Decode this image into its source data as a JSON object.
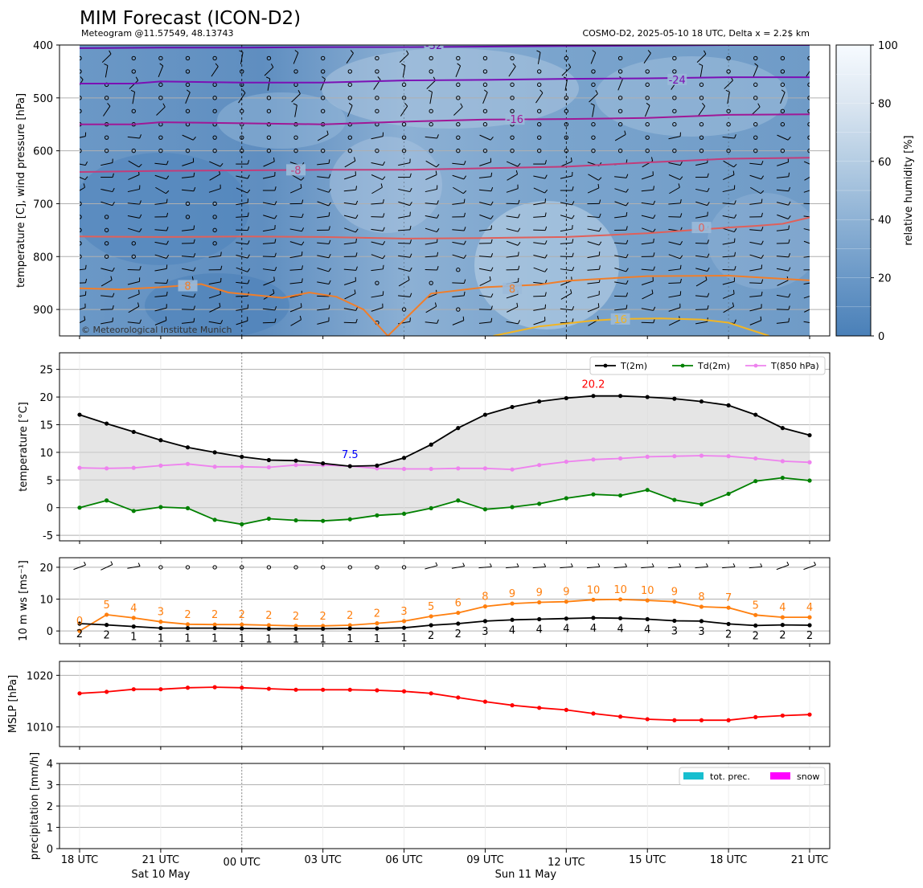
{
  "title": "MIM Forecast (ICON-D2)",
  "subtitle_left": "Meteogram @11.57549, 48.13743",
  "subtitle_right": "COSMO-D2, 2025-05-10 18 UTC, Delta x = 2.2$ km",
  "copyright": "© Meteorological Institute Munich",
  "time_axis": {
    "ticks": [
      "18 UTC",
      "21 UTC",
      "00 UTC",
      "03 UTC",
      "06 UTC",
      "09 UTC",
      "12 UTC",
      "15 UTC",
      "18 UTC",
      "21 UTC"
    ],
    "days": [
      "Sat 10 May",
      "Sun 11 May"
    ]
  },
  "chart_data": [
    {
      "id": "upper_air",
      "type": "heatmap",
      "ylabel": "temperature [C], wind pressure [hPa]",
      "y_ticks": [
        400,
        500,
        600,
        700,
        800,
        900
      ],
      "ylim": [
        950,
        400
      ],
      "xlim": [
        0,
        27
      ],
      "colorbar": {
        "label": "relative humidity [%]",
        "ticks": [
          0,
          20,
          40,
          60,
          80,
          100
        ]
      },
      "isotherms": [
        {
          "label": "-32",
          "color": "#6a0dad",
          "x": [
            0,
            3,
            6,
            9,
            12,
            15,
            18,
            21,
            24,
            27
          ],
          "p": [
            406,
            405,
            405,
            404,
            404,
            403,
            402,
            401,
            400,
            400
          ]
        },
        {
          "label": "-24",
          "color": "#7b10b5",
          "x": [
            0,
            2,
            3,
            6,
            9,
            12,
            15,
            18,
            21,
            24,
            27
          ],
          "p": [
            473,
            473,
            469,
            471,
            471,
            467,
            466,
            464,
            463,
            461,
            461
          ]
        },
        {
          "label": "-16",
          "color": "#a01896",
          "x": [
            0,
            2,
            3,
            6,
            9,
            12,
            15,
            18,
            21,
            24,
            27
          ],
          "p": [
            550,
            550,
            546,
            548,
            550,
            545,
            541,
            540,
            538,
            532,
            531
          ]
        },
        {
          "label": "-8",
          "color": "#c23c7a",
          "x": [
            0,
            3,
            6,
            9,
            12,
            15,
            18,
            21,
            24,
            27
          ],
          "p": [
            640,
            638,
            637,
            636,
            636,
            633,
            630,
            622,
            615,
            613
          ]
        },
        {
          "label": "0",
          "color": "#e0605a",
          "x": [
            0,
            3,
            6,
            9,
            12,
            15,
            18,
            21,
            24,
            25,
            26,
            27
          ],
          "p": [
            762,
            763,
            762,
            763,
            766,
            765,
            763,
            756,
            745,
            742,
            738,
            726
          ]
        },
        {
          "label": "8",
          "color": "#f07e2a",
          "x": [
            0,
            1.5,
            3,
            4.5,
            5.5,
            6.5,
            7.5,
            8.5,
            9.5,
            10.5,
            11.4,
            13,
            15,
            17,
            18,
            21,
            24,
            27
          ],
          "p": [
            860,
            862,
            858,
            852,
            868,
            873,
            878,
            868,
            876,
            900,
            950,
            870,
            858,
            853,
            846,
            837,
            836,
            845
          ]
        },
        {
          "label": "16",
          "color": "#f2b523",
          "x": [
            15.3,
            17,
            19,
            20,
            21.5,
            23,
            24,
            25.5
          ],
          "p": [
            950,
            932,
            921,
            918,
            917,
            919,
            925,
            950
          ]
        }
      ],
      "isotherm_labels": [
        {
          "text": "-32",
          "x": 13.1,
          "p": 400
        },
        {
          "text": "-24",
          "x": 22.1,
          "p": 465
        },
        {
          "text": "-16",
          "x": 16.1,
          "p": 540
        },
        {
          "text": "-8",
          "x": 8.0,
          "p": 636
        },
        {
          "text": "0",
          "x": 23.0,
          "p": 745
        },
        {
          "text": "8",
          "x": 4.0,
          "p": 855
        },
        {
          "text": "8",
          "x": 16.0,
          "p": 860
        },
        {
          "text": "16",
          "x": 20.0,
          "p": 918
        }
      ]
    },
    {
      "id": "temperature",
      "type": "line",
      "ylabel": "temperature [$^\\circ$C]",
      "ylim": [
        -6,
        28
      ],
      "y_ticks": [
        -5,
        0,
        5,
        10,
        15,
        20,
        25
      ],
      "x": [
        0,
        1,
        2,
        3,
        4,
        5,
        6,
        7,
        8,
        9,
        10,
        11,
        12,
        13,
        14,
        15,
        16,
        17,
        18,
        19,
        20,
        21,
        22,
        23,
        24,
        25,
        26,
        27
      ],
      "series": [
        {
          "name": "T(2m)",
          "color": "#000000",
          "values": [
            16.8,
            15.2,
            13.7,
            12.2,
            10.9,
            10.0,
            9.2,
            8.6,
            8.5,
            8.0,
            7.5,
            7.6,
            9.0,
            11.4,
            14.4,
            16.8,
            18.2,
            19.2,
            19.8,
            20.2,
            20.2,
            20.0,
            19.7,
            19.2,
            18.5,
            16.8,
            14.4,
            13.1
          ]
        },
        {
          "name": "Td(2m)",
          "color": "#008000",
          "values": [
            0.0,
            1.3,
            -0.6,
            0.1,
            -0.1,
            -2.2,
            -3.0,
            -2.0,
            -2.3,
            -2.4,
            -2.1,
            -1.4,
            -1.1,
            -0.1,
            1.3,
            -0.3,
            0.1,
            0.7,
            1.7,
            2.4,
            2.2,
            3.2,
            1.4,
            0.6,
            2.5,
            4.8,
            5.4,
            4.9
          ]
        },
        {
          "name": "T(850 hPa)",
          "color": "#ee82ee",
          "values": [
            7.2,
            7.1,
            7.2,
            7.6,
            7.9,
            7.4,
            7.4,
            7.3,
            7.7,
            7.7,
            7.5,
            7.1,
            7.0,
            7.0,
            7.1,
            7.1,
            6.9,
            7.7,
            8.3,
            8.7,
            8.9,
            9.2,
            9.3,
            9.4,
            9.3,
            8.9,
            8.4,
            8.2
          ]
        }
      ],
      "annotations": [
        {
          "text": "7.5",
          "x": 10,
          "y": 7.5,
          "color": "#0000ff"
        },
        {
          "text": "20.2",
          "x": 19,
          "y": 20.2,
          "color": "#ff0000"
        }
      ],
      "legend": "top-right"
    },
    {
      "id": "wind",
      "type": "line",
      "ylabel": "10 m ws [ms$^{-1}$]",
      "ylim": [
        -4,
        23
      ],
      "y_ticks": [
        0,
        10,
        20
      ],
      "x": [
        0,
        1,
        2,
        3,
        4,
        5,
        6,
        7,
        8,
        9,
        10,
        11,
        12,
        13,
        14,
        15,
        16,
        17,
        18,
        19,
        20,
        21,
        22,
        23,
        24,
        25,
        26,
        27
      ],
      "series": [
        {
          "color": "#ff7f0e",
          "values": [
            0.0,
            5.1,
            4.1,
            2.9,
            2.1,
            2.0,
            2.0,
            1.8,
            1.6,
            1.6,
            1.8,
            2.4,
            3.1,
            4.6,
            5.7,
            7.7,
            8.6,
            9.0,
            9.2,
            9.8,
            9.9,
            9.6,
            9.2,
            7.6,
            7.3,
            5.0,
            4.3,
            4.3
          ]
        },
        {
          "color": "#000000",
          "values": [
            2.3,
            1.9,
            1.4,
            0.9,
            0.9,
            0.9,
            0.8,
            0.7,
            0.7,
            0.7,
            0.8,
            0.8,
            1.0,
            1.8,
            2.3,
            3.1,
            3.5,
            3.7,
            3.9,
            4.1,
            4.0,
            3.7,
            3.2,
            3.1,
            2.2,
            1.7,
            1.9,
            1.8
          ]
        }
      ],
      "gust_labels": [
        "0",
        "5",
        "4",
        "3",
        "2",
        "2",
        "2",
        "2",
        "2",
        "2",
        "2",
        "2",
        "3",
        "5",
        "6",
        "8",
        "9",
        "9",
        "9",
        "10",
        "10",
        "10",
        "9",
        "8",
        "7",
        "5",
        "4",
        "4"
      ],
      "speed_labels": [
        "2",
        "2",
        "1",
        "1",
        "1",
        "1",
        "1",
        "1",
        "1",
        "1",
        "1",
        "1",
        "1",
        "2",
        "2",
        "3",
        "4",
        "4",
        "4",
        "4",
        "4",
        "4",
        "3",
        "3",
        "2",
        "2",
        "2",
        "2"
      ],
      "barb_angles": [
        -20,
        -25,
        -10,
        null,
        null,
        null,
        null,
        null,
        null,
        null,
        null,
        null,
        null,
        -15,
        -10,
        -5,
        -5,
        -5,
        -5,
        -5,
        -5,
        -5,
        -5,
        -5,
        -5,
        -5,
        -20,
        -20
      ]
    },
    {
      "id": "mslp",
      "type": "line",
      "ylabel": "MSLP [hPa]",
      "ylim": [
        1006.2,
        1022.7
      ],
      "y_ticks": [
        1010,
        1020
      ],
      "x": [
        0,
        1,
        2,
        3,
        4,
        5,
        6,
        7,
        8,
        9,
        10,
        11,
        12,
        13,
        14,
        15,
        16,
        17,
        18,
        19,
        20,
        21,
        22,
        23,
        24,
        25,
        26,
        27
      ],
      "series": [
        {
          "color": "#ff0000",
          "values": [
            1016.5,
            1016.8,
            1017.3,
            1017.3,
            1017.6,
            1017.7,
            1017.6,
            1017.4,
            1017.2,
            1017.2,
            1017.2,
            1017.1,
            1016.9,
            1016.5,
            1015.7,
            1014.9,
            1014.2,
            1013.7,
            1013.3,
            1012.6,
            1012.0,
            1011.5,
            1011.3,
            1011.3,
            1011.3,
            1011.9,
            1012.2,
            1012.4
          ]
        }
      ]
    },
    {
      "id": "precip",
      "type": "bar",
      "ylabel": "precipitation [mm/h]",
      "ylim": [
        0,
        4
      ],
      "y_ticks": [
        0,
        1,
        2,
        3,
        4
      ],
      "series": [
        {
          "name": "tot. prec.",
          "color": "#17becf",
          "values": [
            0,
            0,
            0,
            0,
            0,
            0,
            0,
            0,
            0,
            0,
            0,
            0,
            0,
            0,
            0,
            0,
            0,
            0,
            0,
            0,
            0,
            0,
            0,
            0,
            0,
            0,
            0,
            0
          ]
        },
        {
          "name": "snow",
          "color": "#ff00ff",
          "values": [
            0,
            0,
            0,
            0,
            0,
            0,
            0,
            0,
            0,
            0,
            0,
            0,
            0,
            0,
            0,
            0,
            0,
            0,
            0,
            0,
            0,
            0,
            0,
            0,
            0,
            0,
            0,
            0
          ]
        }
      ],
      "legend": "top-right"
    }
  ]
}
